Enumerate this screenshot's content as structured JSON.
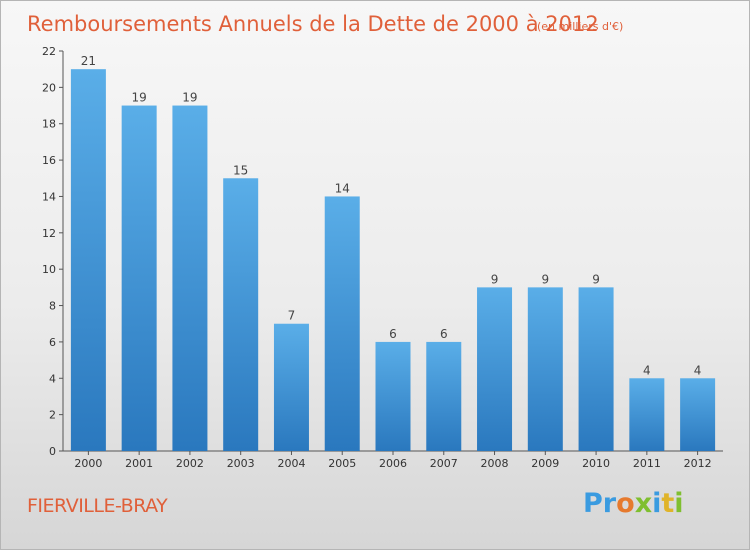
{
  "chart_data": {
    "type": "bar",
    "title": "Remboursements Annuels de la Dette de 2000 à 2012",
    "unit": "(en milliers d'€)",
    "categories": [
      "2000",
      "2001",
      "2002",
      "2003",
      "2004",
      "2005",
      "2006",
      "2007",
      "2008",
      "2009",
      "2010",
      "2011",
      "2012"
    ],
    "values": [
      21,
      19,
      19,
      15,
      7,
      14,
      6,
      6,
      9,
      9,
      9,
      4,
      4
    ],
    "ylim": [
      0,
      22
    ],
    "yticks": [
      0,
      2,
      4,
      6,
      8,
      10,
      12,
      14,
      16,
      18,
      20,
      22
    ],
    "grid": false,
    "bar_color": "#4a9ee0"
  },
  "commune": "FIERVILLE-BRAY",
  "logo": {
    "letters": [
      {
        "ch": "P",
        "color": "#3a9be0"
      },
      {
        "ch": "r",
        "color": "#3a9be0"
      },
      {
        "ch": "o",
        "color": "#e67a2e"
      },
      {
        "ch": "x",
        "color": "#7fbf2f"
      },
      {
        "ch": "i",
        "color": "#3a9be0"
      },
      {
        "ch": "t",
        "color": "#e0b42a"
      },
      {
        "ch": "i",
        "color": "#7fbf2f"
      }
    ]
  }
}
